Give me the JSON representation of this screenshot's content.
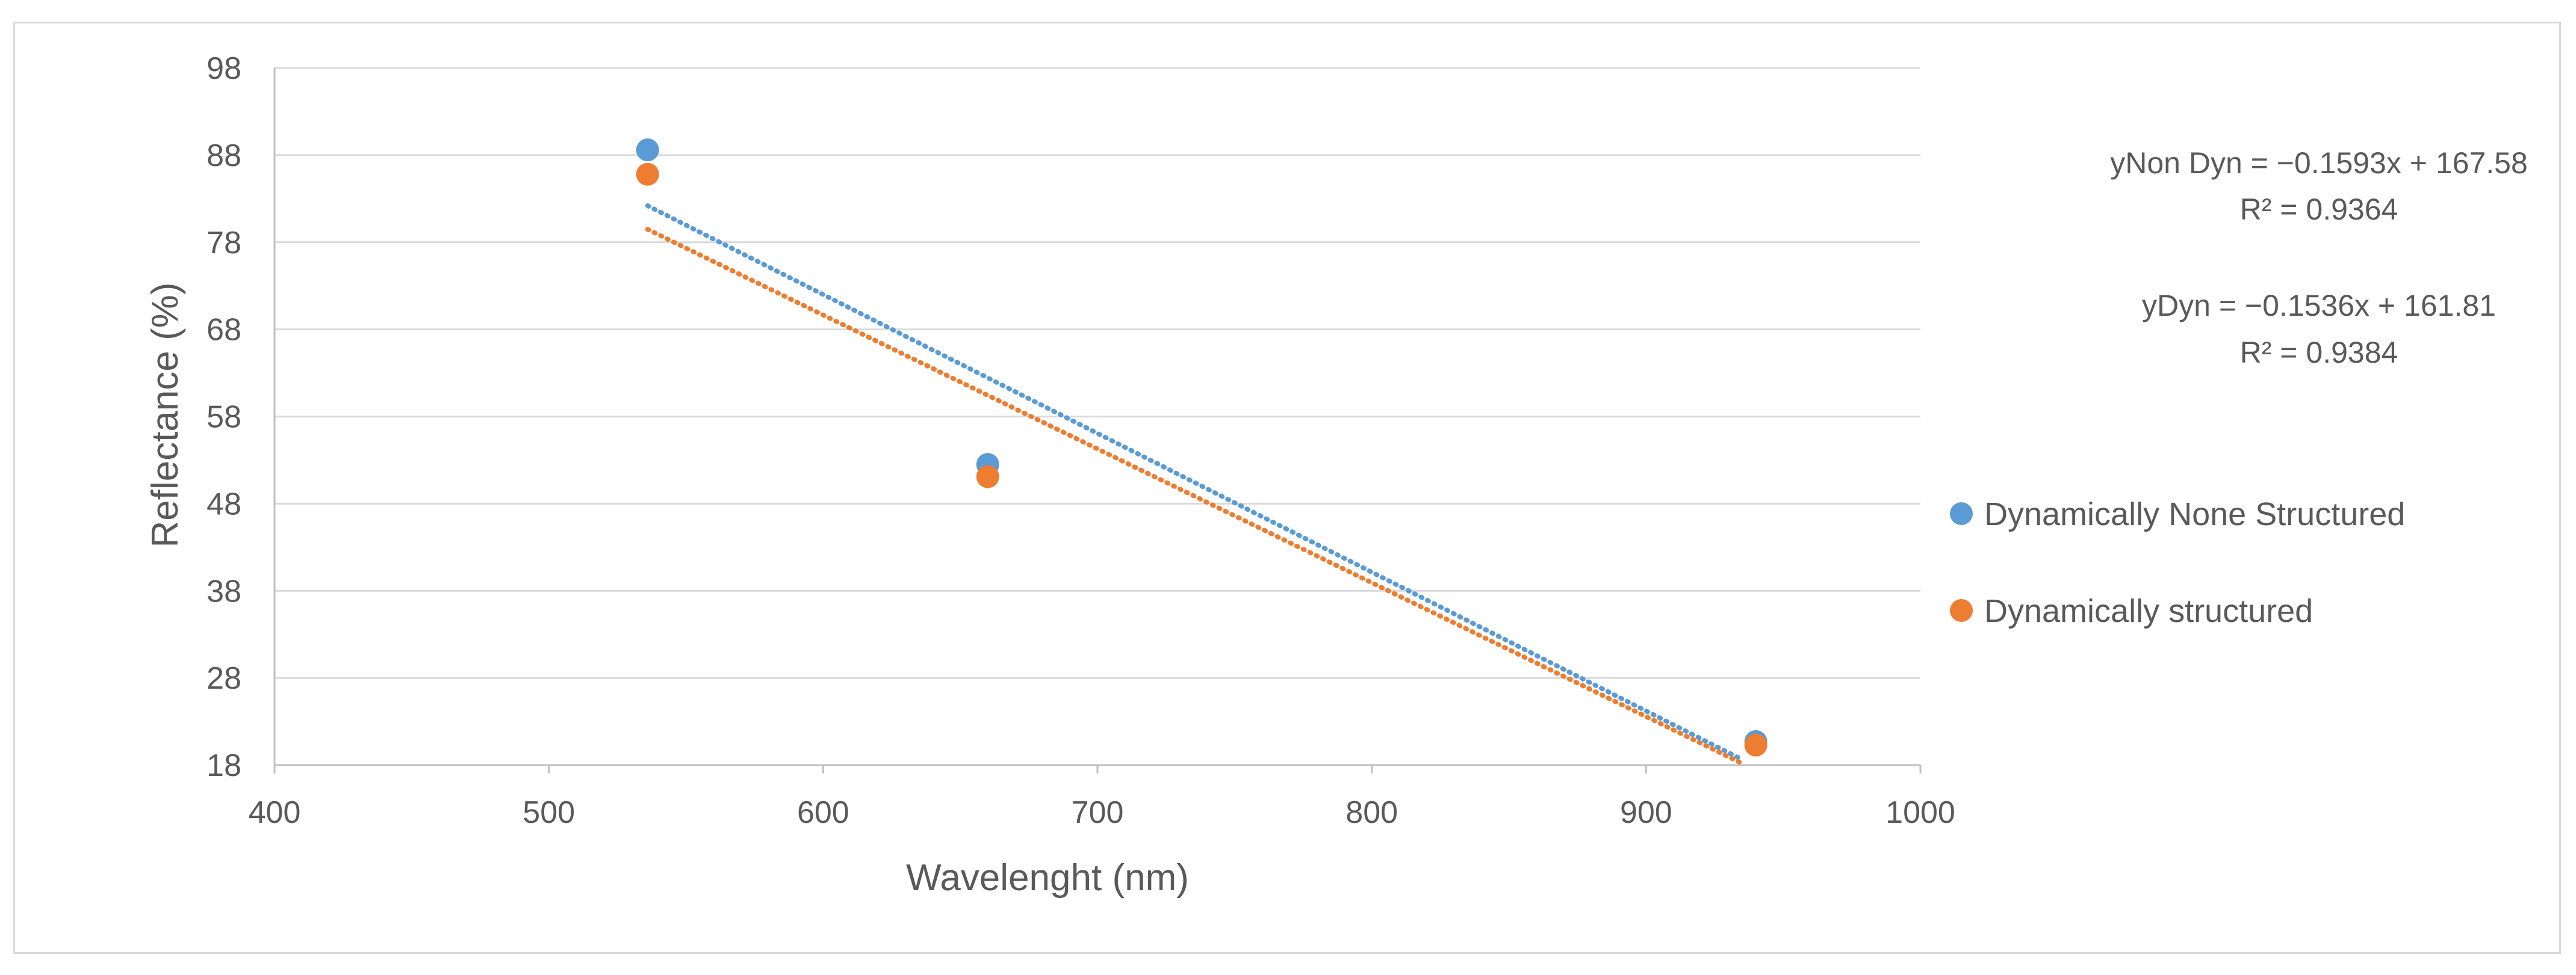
{
  "chart_data": {
    "type": "scatter",
    "title": "",
    "xlabel": "Wavelenght (nm)",
    "ylabel": "Reflectance (%)",
    "xlim": [
      400,
      1000
    ],
    "ylim": [
      18,
      98
    ],
    "xticks": [
      400,
      500,
      600,
      700,
      800,
      900,
      1000
    ],
    "yticks": [
      18,
      28,
      38,
      48,
      58,
      68,
      78,
      88,
      98
    ],
    "grid": "horizontal",
    "legend_position": "right",
    "series": [
      {
        "name": "Dynamically None Structured",
        "color": "#5b9bd5",
        "x": [
          536,
          660,
          940
        ],
        "y": [
          88.6,
          52.5,
          20.7
        ],
        "trendline": {
          "slope": -0.1593,
          "intercept": 167.58,
          "x_start": 536,
          "x_end": 935
        }
      },
      {
        "name": "Dynamically structured",
        "color": "#ed7d31",
        "x": [
          536,
          660,
          940
        ],
        "y": [
          85.8,
          51.1,
          20.3
        ],
        "trendline": {
          "slope": -0.1536,
          "intercept": 161.81,
          "x_start": 536,
          "x_end": 935
        }
      }
    ],
    "annotations": [
      {
        "line1": "yNon Dyn = −0.1593x + 167.58",
        "line2": "R² = 0.9364"
      },
      {
        "line1": "yDyn = −0.1536x + 161.81",
        "line2": "R² = 0.9384"
      }
    ]
  }
}
